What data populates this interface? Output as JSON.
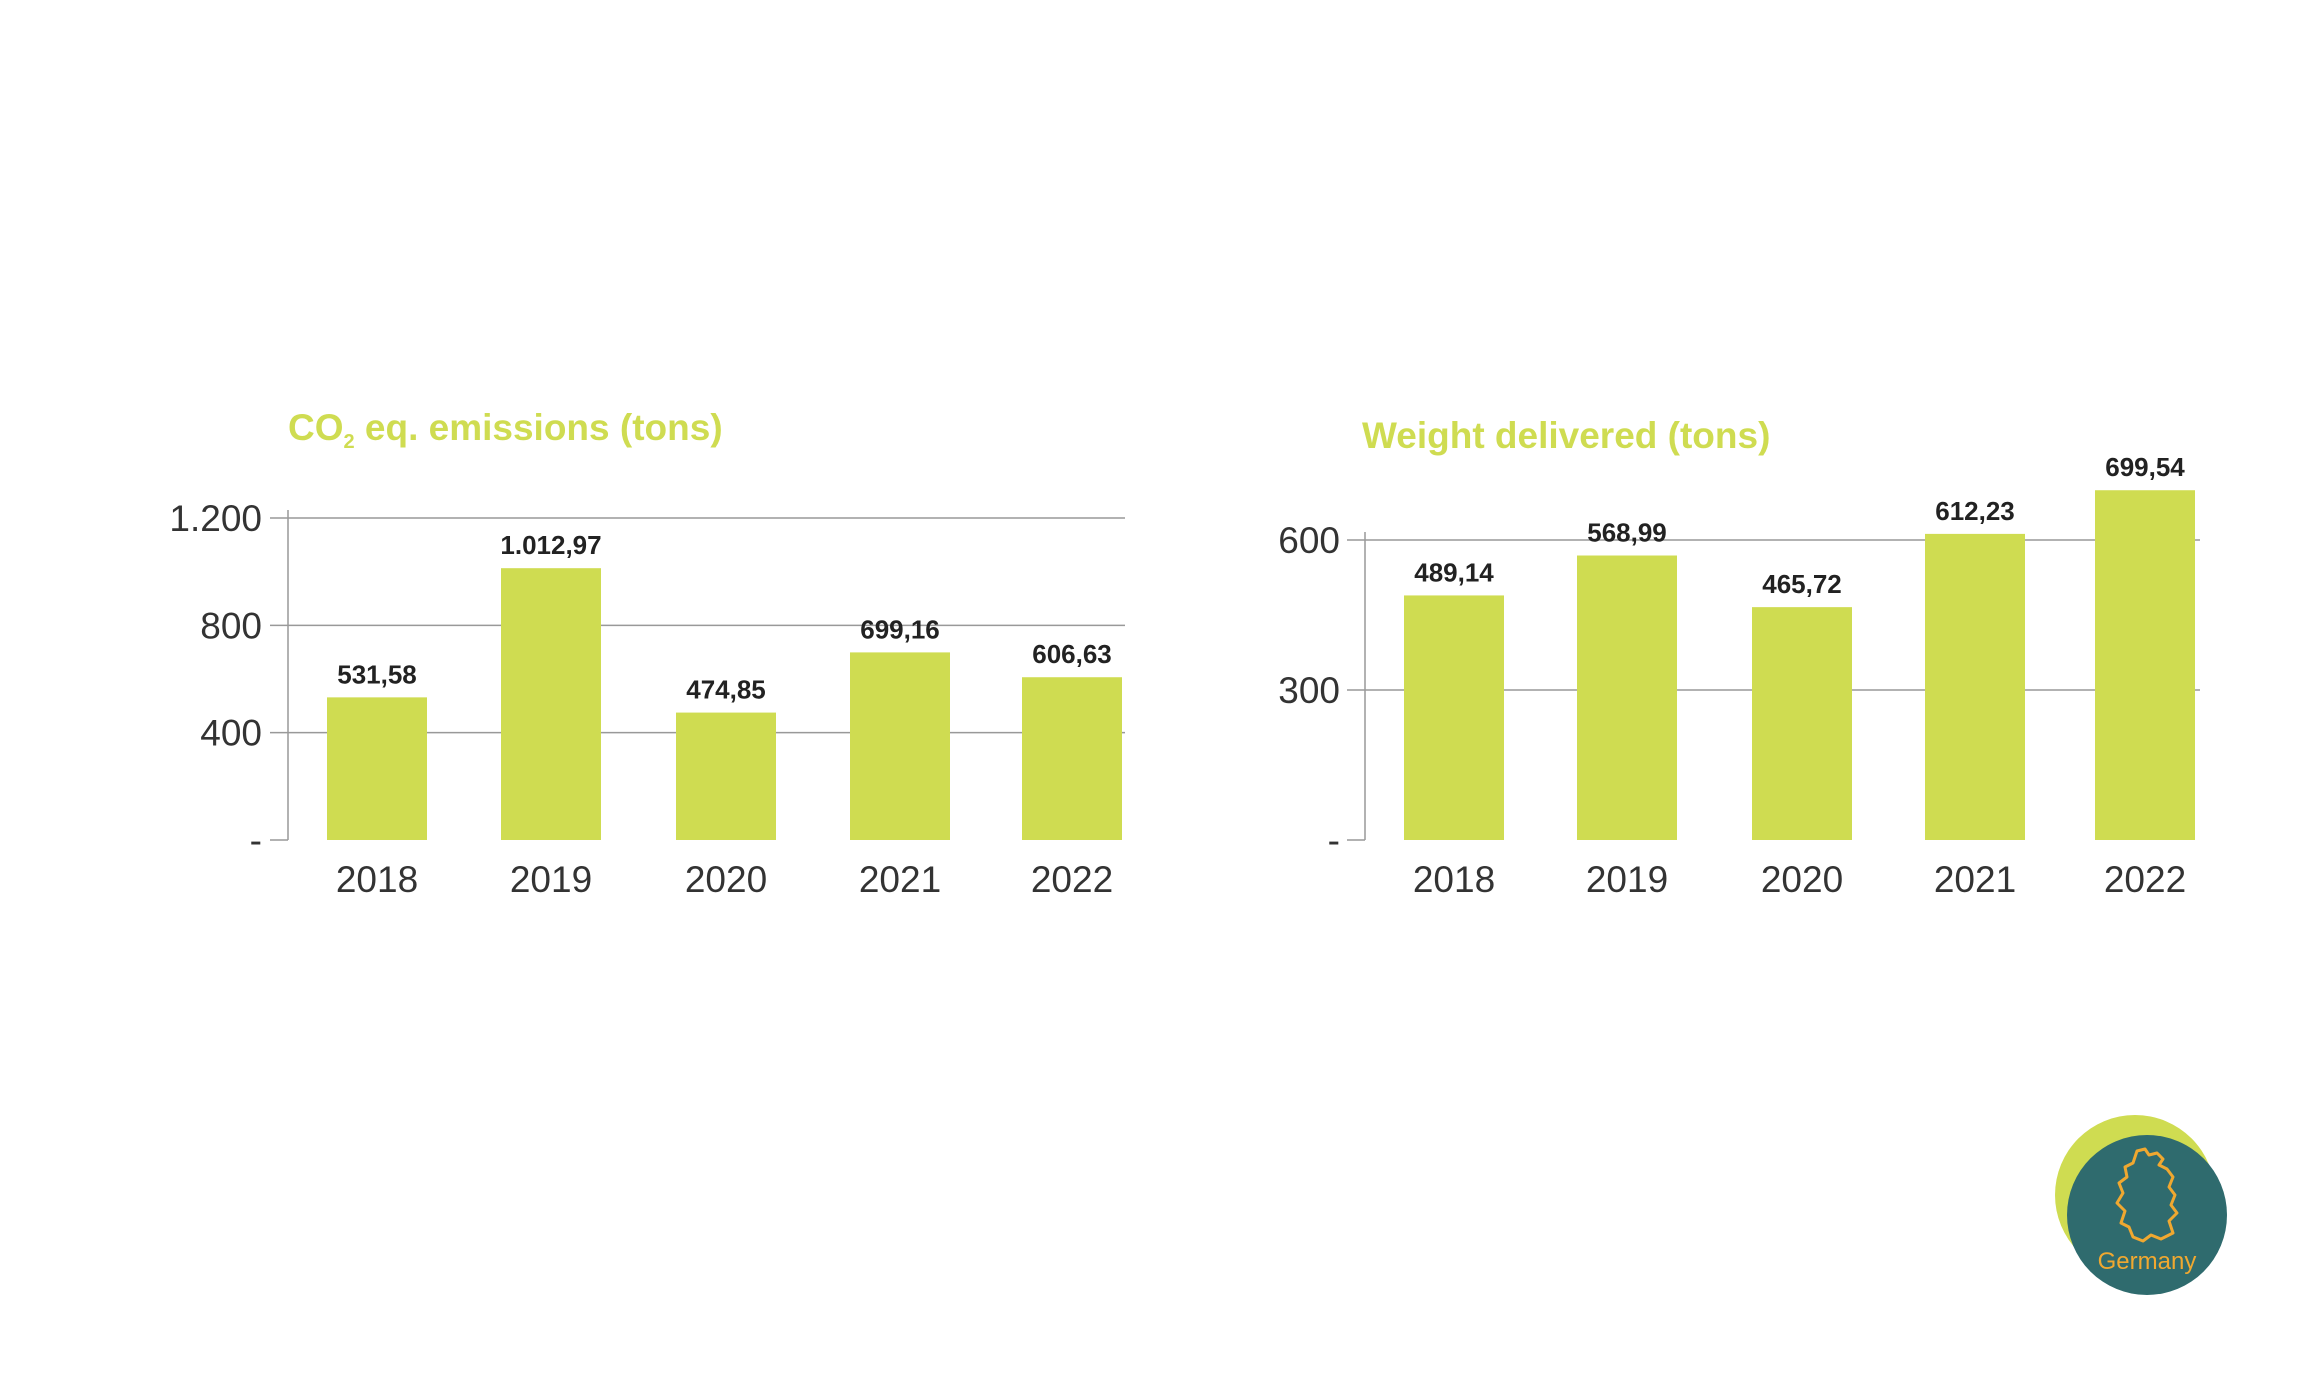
{
  "colors": {
    "bar": "#cfdc51",
    "title": "#cfdc51",
    "grid": "#999999",
    "badge_outer": "#cfdc51",
    "badge_inner": "#2f6b6e",
    "badge_text": "#f0a830"
  },
  "chart_data": [
    {
      "type": "bar",
      "title_main": "CO",
      "title_sub": "2",
      "title_rest": " eq. emissions (tons)",
      "categories": [
        "2018",
        "2019",
        "2020",
        "2021",
        "2022"
      ],
      "values": [
        531.58,
        1012.97,
        474.85,
        699.16,
        606.63
      ],
      "value_labels": [
        "531,58",
        "1.012,97",
        "474,85",
        "699,16",
        "606,63"
      ],
      "ylim": [
        0,
        1200
      ],
      "yticks": [
        0,
        400,
        800,
        1200
      ],
      "ytick_labels": [
        "-",
        "400",
        "800",
        "1.200"
      ],
      "grid": true
    },
    {
      "type": "bar",
      "title": "Weight delivered (tons)",
      "categories": [
        "2018",
        "2019",
        "2020",
        "2021",
        "2022"
      ],
      "values": [
        489.14,
        568.99,
        465.72,
        612.23,
        699.54
      ],
      "value_labels": [
        "489,14",
        "568,99",
        "465,72",
        "612,23",
        "699,54"
      ],
      "ylim": [
        0,
        600
      ],
      "yticks": [
        0,
        300,
        600
      ],
      "ytick_labels": [
        "-",
        "300",
        "600"
      ],
      "grid": true
    }
  ],
  "badge": {
    "label": "Germany",
    "icon": "germany-map-icon"
  }
}
